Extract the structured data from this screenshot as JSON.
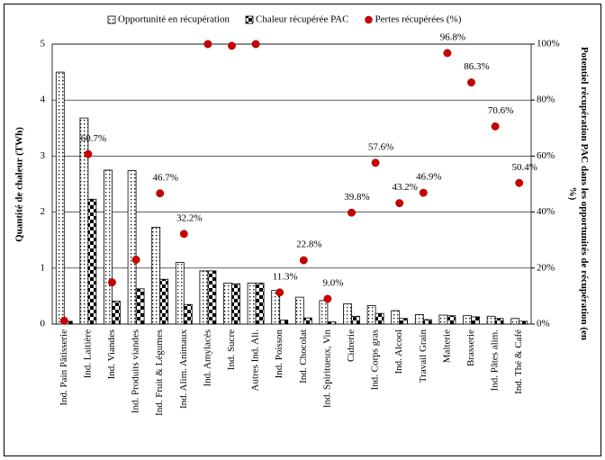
{
  "chart_data": {
    "type": "bar",
    "categories": [
      "Ind. Pain Pâtisserie",
      "Ind. Laitière",
      "Ind. Viandes",
      "Ind. Produits viandes",
      "Ind. Fruit & Légumes",
      "Ind. Alim. Animaux",
      "Ind. Amylacés",
      "Ind. Sucre",
      "Autres Ind. Ali.",
      "Ind. Poisson",
      "Ind. Chocolat",
      "Ind. Spiritueux, Vin",
      "Cidrerie",
      "Ind. Corps gras",
      "Ind. Alcool",
      "Travail Grain",
      "Malterie",
      "Brasserie",
      "Ind. Pâtes alim.",
      "Ind. Thé & Café"
    ],
    "series": [
      {
        "name": "Opportunité en récupération",
        "color": "#000000",
        "pattern": "dots",
        "values": [
          4.5,
          3.68,
          2.75,
          2.74,
          1.73,
          1.1,
          0.95,
          0.73,
          0.73,
          0.6,
          0.48,
          0.42,
          0.36,
          0.33,
          0.24,
          0.17,
          0.16,
          0.15,
          0.14,
          0.1
        ]
      },
      {
        "name": "Chaleur récupérée PAC",
        "color": "#000000",
        "pattern": "checker",
        "values": [
          0.05,
          2.23,
          0.41,
          0.63,
          0.8,
          0.35,
          0.95,
          0.72,
          0.73,
          0.07,
          0.11,
          0.04,
          0.14,
          0.19,
          0.1,
          0.08,
          0.15,
          0.13,
          0.1,
          0.05
        ]
      },
      {
        "name": "Pertes récupérées (%)",
        "color": "#cc0000",
        "type": "scatter",
        "axis": "y2",
        "values": [
          1.2,
          60.7,
          14.9,
          23,
          46.7,
          32.2,
          100,
          99.4,
          100,
          11.3,
          22.8,
          9.0,
          39.8,
          57.6,
          43.2,
          46.9,
          96.8,
          86.3,
          70.6,
          50.4
        ],
        "value_labels": [
          null,
          "60.7%",
          null,
          null,
          "46.7%",
          "32.2%",
          null,
          null,
          null,
          "11.3%",
          "22.8%",
          "9.0%",
          "39.8%",
          "57.6%",
          "43.2%",
          "46.9%",
          "96.8%",
          "86.3%",
          "70.6%",
          "50.4%"
        ]
      }
    ],
    "y_label": "Quantité de chaleur (TWh)",
    "y2_label": "Potentiel récupération PAC dans les opportunités de récupération (en %)",
    "ylim": [
      0,
      5
    ],
    "yticks": [
      0,
      1,
      2,
      3,
      4,
      5
    ],
    "y2lim": [
      0,
      100
    ],
    "y2ticks": [
      {
        "value": 0,
        "label": "0%"
      },
      {
        "value": 20,
        "label": "20%"
      },
      {
        "value": 40,
        "label": "40%"
      },
      {
        "value": 60,
        "label": "60%"
      },
      {
        "value": 80,
        "label": "80%"
      },
      {
        "value": 100,
        "label": "100%"
      }
    ],
    "grid": true,
    "legend": "top"
  }
}
